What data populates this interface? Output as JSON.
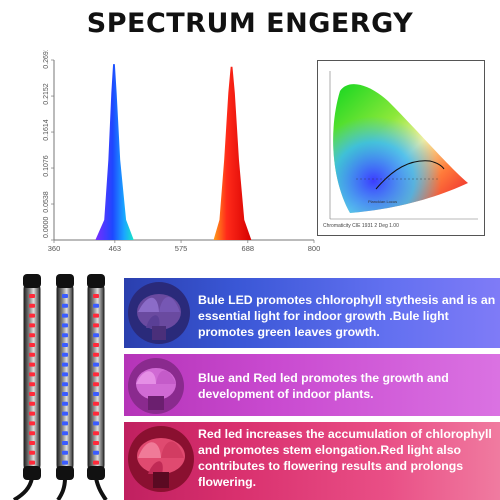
{
  "title": "SPECTRUM ENGERGY",
  "spectrum_chart": {
    "x_ticks": [
      "360",
      "463",
      "575",
      "688",
      "800"
    ],
    "y_ticks": [
      "0.0000",
      "0.0538",
      "0.1076",
      "0.1614",
      "0.2152",
      "0.2691"
    ],
    "colors": {
      "blue": "#2a3fe6",
      "red": "#ff1a1a"
    }
  },
  "chart_data": {
    "type": "line",
    "series": [
      {
        "values": [
          [
            430,
            0
          ],
          [
            445,
            0.03
          ],
          [
            452,
            0.12
          ],
          [
            457,
            0.22
          ],
          [
            460,
            0.263
          ],
          [
            463,
            0.263
          ],
          [
            466,
            0.22
          ],
          [
            472,
            0.12
          ],
          [
            482,
            0.03
          ],
          [
            495,
            0
          ]
        ]
      },
      {
        "values": [
          [
            630,
            0
          ],
          [
            640,
            0.03
          ],
          [
            648,
            0.12
          ],
          [
            655,
            0.22
          ],
          [
            659,
            0.259
          ],
          [
            662,
            0.259
          ],
          [
            666,
            0.22
          ],
          [
            673,
            0.12
          ],
          [
            682,
            0.03
          ],
          [
            694,
            0
          ]
        ]
      }
    ],
    "xlim": [
      360,
      800
    ],
    "ylim": [
      0,
      0.2691
    ]
  },
  "cie": {
    "caption": "Chromaticity CIE 1931 2 Deg 1.00",
    "label": "Planckian Locus"
  },
  "panels": [
    {
      "text": "Bule LED promotes chlorophyll stythesis and is an essential light for indoor growth .Bule light promotes green leaves growth."
    },
    {
      "text": "Blue and Red led promotes the growth and development of indoor plants."
    },
    {
      "text": "Red led increases the accumulation of chlorophyll and promotes stem elongation.Red light also contributes to flowering results and prolongs flowering."
    }
  ]
}
